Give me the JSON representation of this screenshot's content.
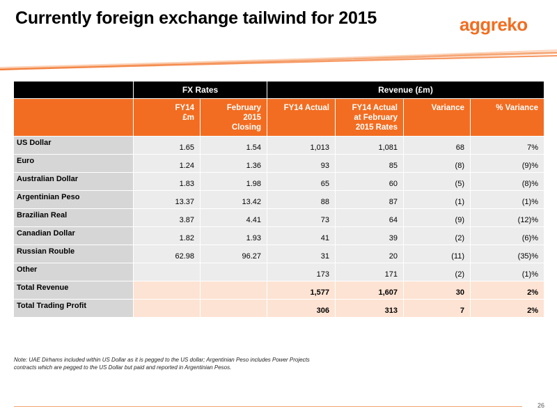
{
  "slide": {
    "title": "Currently foreign exchange tailwind for 2015",
    "logo_text": "aggreko",
    "page_number": "26",
    "note_line1": "Note: UAE Dirhams included within US Dollar as it is pegged to the US dollar; Argentinian Peso includes Power Projects",
    "note_line2": "contracts which are pegged to the US Dollar but paid and reported in Argentinian Pesos."
  },
  "colors": {
    "brand_orange": "#f26d21",
    "header_black": "#000000",
    "label_grey": "#d6d6d6",
    "cell_grey": "#ececec",
    "total_peach": "#fde3d3"
  },
  "table": {
    "group_headers": {
      "fx": "FX Rates",
      "revenue": "Revenue (£m)"
    },
    "columns": {
      "fy14_1": "FY14",
      "fy14_2": "£m",
      "feb_1": "February",
      "feb_2": "2015",
      "feb_3": "Closing",
      "fy14_actual": "FY14 Actual",
      "at_feb_1": "FY14 Actual",
      "at_feb_2": "at February",
      "at_feb_3": "2015 Rates",
      "variance": "Variance",
      "pct_variance": "% Variance"
    },
    "rows": [
      {
        "label": "US Dollar",
        "fy14": "1.65",
        "feb": "1.54",
        "actual": "1,013",
        "at_feb": "1,081",
        "variance": "68",
        "pct": "7%"
      },
      {
        "label": "Euro",
        "fy14": "1.24",
        "feb": "1.36",
        "actual": "93",
        "at_feb": "85",
        "variance": "(8)",
        "pct": "(9)%"
      },
      {
        "label": "Australian Dollar",
        "fy14": "1.83",
        "feb": "1.98",
        "actual": "65",
        "at_feb": "60",
        "variance": "(5)",
        "pct": "(8)%"
      },
      {
        "label": "Argentinian Peso",
        "fy14": "13.37",
        "feb": "13.42",
        "actual": "88",
        "at_feb": "87",
        "variance": "(1)",
        "pct": "(1)%"
      },
      {
        "label": "Brazilian Real",
        "fy14": "3.87",
        "feb": "4.41",
        "actual": "73",
        "at_feb": "64",
        "variance": "(9)",
        "pct": "(12)%"
      },
      {
        "label": "Canadian Dollar",
        "fy14": "1.82",
        "feb": "1.93",
        "actual": "41",
        "at_feb": "39",
        "variance": "(2)",
        "pct": "(6)%"
      },
      {
        "label": "Russian Rouble",
        "fy14": "62.98",
        "feb": "96.27",
        "actual": "31",
        "at_feb": "20",
        "variance": "(11)",
        "pct": "(35)%"
      },
      {
        "label": "Other",
        "fy14": "",
        "feb": "",
        "actual": "173",
        "at_feb": "171",
        "variance": "(2)",
        "pct": "(1)%"
      }
    ],
    "totals": [
      {
        "label": "Total Revenue",
        "actual": "1,577",
        "at_feb": "1,607",
        "variance": "30",
        "pct": "2%"
      },
      {
        "label": "Total Trading Profit",
        "actual": "306",
        "at_feb": "313",
        "variance": "7",
        "pct": "2%"
      }
    ]
  }
}
